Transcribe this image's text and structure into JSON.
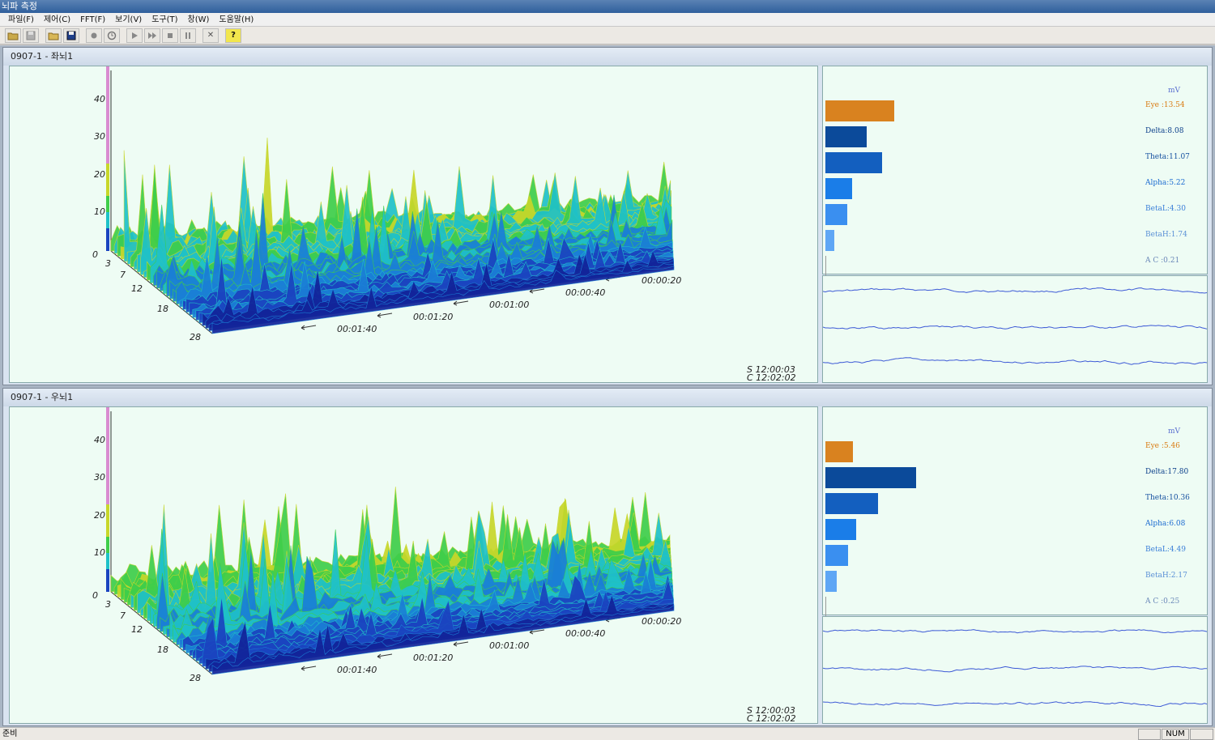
{
  "window": {
    "title": "뇌파 측정"
  },
  "menu": [
    "파일(F)",
    "제어(C)",
    "FFT(F)",
    "보기(V)",
    "도구(T)",
    "창(W)",
    "도움말(H)"
  ],
  "toolbar": {
    "icons": [
      "open-icon",
      "save-disabled-icon",
      "open-folder-icon",
      "save-icon",
      "record-icon",
      "timer-icon",
      "play-icon",
      "fast-forward-icon",
      "stop-icon",
      "pause-icon",
      "close-icon",
      "help-icon"
    ],
    "help_glyph": "?",
    "close_glyph": "✕"
  },
  "panels": [
    {
      "title": "0907-1 - 좌뇌1",
      "z_ticks": [
        "40",
        "30",
        "20",
        "10",
        "0"
      ],
      "freq_ticks": [
        "3",
        "7",
        "12",
        "18",
        "28"
      ],
      "time_ticks": [
        "00:00:20",
        "00:00:40",
        "00:01:00",
        "00:01:20",
        "00:01:40"
      ],
      "start_time": "S 12:00:03",
      "current_time": "C 12:02:02",
      "unit": "mV",
      "bands": [
        {
          "label": "Eye  :13.54",
          "value": 13.54,
          "color": "#d9821f",
          "text_color": "#d97a10"
        },
        {
          "label": "Delta:8.08",
          "value": 8.08,
          "color": "#0b4a9a",
          "text_color": "#0b3f8a"
        },
        {
          "label": "Theta:11.07",
          "value": 11.07,
          "color": "#135fbf",
          "text_color": "#134f9f"
        },
        {
          "label": "Alpha:5.22",
          "value": 5.22,
          "color": "#1a7de8",
          "text_color": "#1a6ad0"
        },
        {
          "label": "BetaL:4.30",
          "value": 4.3,
          "color": "#3a8ff0",
          "text_color": "#3a7fd8"
        },
        {
          "label": "BetaH:1.74",
          "value": 1.74,
          "color": "#5ea6f5",
          "text_color": "#5a90d6"
        },
        {
          "label": "A C  :0.21",
          "value": 0.21,
          "color": "#7fb6f5",
          "text_color": "#6a88b8"
        }
      ]
    },
    {
      "title": "0907-1 - 우뇌1",
      "z_ticks": [
        "40",
        "30",
        "20",
        "10",
        "0"
      ],
      "freq_ticks": [
        "3",
        "7",
        "12",
        "18",
        "28"
      ],
      "time_ticks": [
        "00:00:20",
        "00:00:40",
        "00:01:00",
        "00:01:20",
        "00:01:40"
      ],
      "start_time": "S 12:00:03",
      "current_time": "C 12:02:02",
      "unit": "mV",
      "bands": [
        {
          "label": "Eye  :5.46",
          "value": 5.46,
          "color": "#d9821f",
          "text_color": "#d97a10"
        },
        {
          "label": "Delta:17.80",
          "value": 17.8,
          "color": "#0b4a9a",
          "text_color": "#0b3f8a"
        },
        {
          "label": "Theta:10.36",
          "value": 10.36,
          "color": "#135fbf",
          "text_color": "#134f9f"
        },
        {
          "label": "Alpha:6.08",
          "value": 6.08,
          "color": "#1a7de8",
          "text_color": "#1a6ad0"
        },
        {
          "label": "BetaL:4.49",
          "value": 4.49,
          "color": "#3a8ff0",
          "text_color": "#3a7fd8"
        },
        {
          "label": "BetaH:2.17",
          "value": 2.17,
          "color": "#5ea6f5",
          "text_color": "#5a90d6"
        },
        {
          "label": "A C  :0.25",
          "value": 0.25,
          "color": "#7fb6f5",
          "text_color": "#6a88b8"
        }
      ]
    }
  ],
  "status": {
    "text": "준비",
    "num": "NUM"
  }
}
